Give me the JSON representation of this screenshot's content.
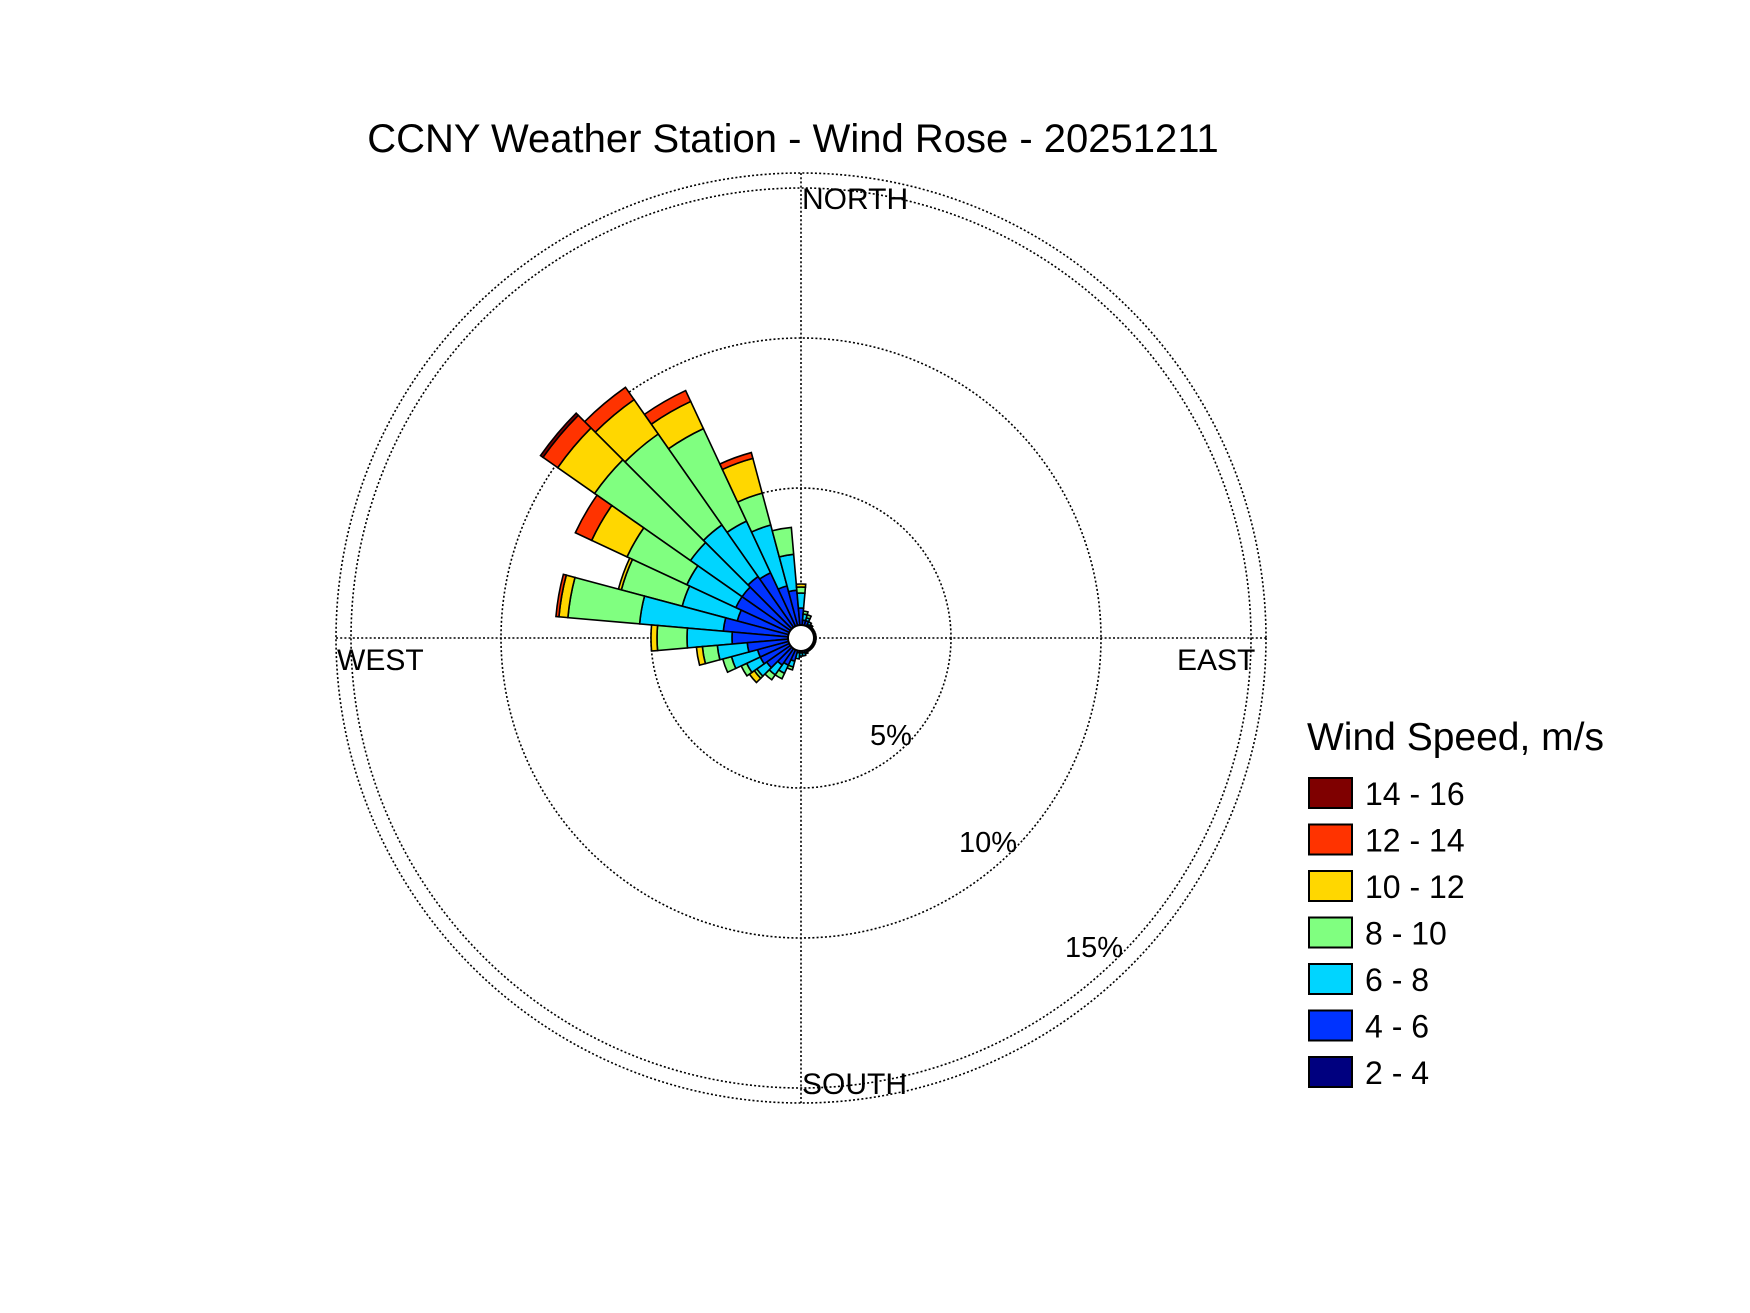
{
  "chart_data": {
    "type": "windrose",
    "title": "CCNY Weather Station - Wind Rose - 20251211",
    "directions": {
      "north": "NORTH",
      "east": "EAST",
      "south": "SOUTH",
      "west": "WEST"
    },
    "rings": [
      {
        "value": 5,
        "label": "5%"
      },
      {
        "value": 10,
        "label": "10%"
      },
      {
        "value": 15,
        "label": "15%"
      }
    ],
    "rmax": 15.5,
    "sector_width_deg": 10,
    "legend": {
      "title": "Wind Speed, m/s",
      "bins": [
        {
          "label": "14 - 16",
          "color": "#7f0000"
        },
        {
          "label": "12 - 14",
          "color": "#ff3300"
        },
        {
          "label": "10 - 12",
          "color": "#ffd700"
        },
        {
          "label": "8 - 10",
          "color": "#80ff80"
        },
        {
          "label": "6 - 8",
          "color": "#00d5ff"
        },
        {
          "label": "4 - 6",
          "color": "#0033ff"
        },
        {
          "label": "2 - 4",
          "color": "#00007f"
        }
      ]
    },
    "bin_order_inner_to_outer": [
      "2 - 4",
      "4 - 6",
      "6 - 8",
      "8 - 10",
      "10 - 12",
      "12 - 14",
      "14 - 16"
    ],
    "sectors": [
      {
        "dir": 330,
        "cumulative": [
          0.4,
          2.4,
          4.3,
          7.7,
          8.7,
          9.1,
          9.1
        ]
      },
      {
        "dir": 320,
        "cumulative": [
          0.4,
          2.5,
          4.6,
          8.3,
          9.7,
          10.2,
          10.2
        ]
      },
      {
        "dir": 310,
        "cumulative": [
          0.4,
          2.4,
          4.5,
          8.4,
          9.9,
          10.5,
          10.6
        ]
      },
      {
        "dir": 300,
        "cumulative": [
          0.4,
          2.4,
          4.2,
          6.4,
          7.7,
          8.3,
          8.3
        ]
      },
      {
        "dir": 290,
        "cumulative": [
          0.4,
          2.2,
          4.1,
          6.2,
          6.3,
          6.3,
          6.3
        ]
      },
      {
        "dir": 280,
        "cumulative": [
          0.4,
          2.6,
          5.4,
          7.8,
          8.1,
          8.2,
          8.2
        ]
      },
      {
        "dir": 270,
        "cumulative": [
          0.4,
          2.3,
          3.8,
          4.8,
          5.0,
          5.0,
          5.0
        ]
      },
      {
        "dir": 340,
        "cumulative": [
          0.4,
          1.8,
          3.9,
          5.0,
          6.2,
          6.4,
          6.4
        ]
      },
      {
        "dir": 350,
        "cumulative": [
          0.4,
          1.6,
          2.8,
          3.7,
          3.7,
          3.7,
          3.7
        ]
      },
      {
        "dir": 0,
        "cumulative": [
          0.4,
          1.0,
          1.5,
          1.7,
          1.8,
          1.8,
          1.8
        ]
      },
      {
        "dir": 10,
        "cumulative": [
          0.4,
          0.6,
          0.8,
          0.9,
          0.9,
          0.9,
          0.9
        ]
      },
      {
        "dir": 20,
        "cumulative": [
          0.4,
          0.6,
          0.7,
          0.8,
          0.8,
          0.8,
          0.8
        ]
      },
      {
        "dir": 30,
        "cumulative": [
          0.4,
          0.5,
          0.6,
          0.6,
          0.6,
          0.6,
          0.6
        ]
      },
      {
        "dir": 40,
        "cumulative": [
          0.4,
          0.5,
          0.55,
          0.55,
          0.55,
          0.55,
          0.55
        ]
      },
      {
        "dir": 50,
        "cumulative": [
          0.4,
          0.45,
          0.5,
          0.5,
          0.5,
          0.5,
          0.5
        ]
      },
      {
        "dir": 60,
        "cumulative": [
          0.4,
          0.45,
          0.5,
          0.5,
          0.5,
          0.5,
          0.5
        ]
      },
      {
        "dir": 70,
        "cumulative": [
          0.4,
          0.45,
          0.5,
          0.5,
          0.5,
          0.5,
          0.5
        ]
      },
      {
        "dir": 80,
        "cumulative": [
          0.4,
          0.45,
          0.5,
          0.5,
          0.5,
          0.5,
          0.5
        ]
      },
      {
        "dir": 90,
        "cumulative": [
          0.4,
          0.45,
          0.5,
          0.5,
          0.5,
          0.5,
          0.5
        ]
      },
      {
        "dir": 100,
        "cumulative": [
          0.4,
          0.45,
          0.5,
          0.5,
          0.5,
          0.5,
          0.5
        ]
      },
      {
        "dir": 110,
        "cumulative": [
          0.4,
          0.45,
          0.5,
          0.5,
          0.5,
          0.5,
          0.5
        ]
      },
      {
        "dir": 120,
        "cumulative": [
          0.4,
          0.45,
          0.5,
          0.5,
          0.5,
          0.5,
          0.5
        ]
      },
      {
        "dir": 130,
        "cumulative": [
          0.4,
          0.45,
          0.5,
          0.5,
          0.5,
          0.5,
          0.5
        ]
      },
      {
        "dir": 140,
        "cumulative": [
          0.4,
          0.45,
          0.5,
          0.5,
          0.5,
          0.5,
          0.5
        ]
      },
      {
        "dir": 150,
        "cumulative": [
          0.4,
          0.45,
          0.5,
          0.5,
          0.5,
          0.5,
          0.5
        ]
      },
      {
        "dir": 160,
        "cumulative": [
          0.4,
          0.5,
          0.55,
          0.55,
          0.55,
          0.55,
          0.55
        ]
      },
      {
        "dir": 170,
        "cumulative": [
          0.4,
          0.5,
          0.6,
          0.6,
          0.6,
          0.6,
          0.6
        ]
      },
      {
        "dir": 180,
        "cumulative": [
          0.4,
          0.5,
          0.6,
          0.6,
          0.6,
          0.6,
          0.6
        ]
      },
      {
        "dir": 190,
        "cumulative": [
          0.4,
          0.5,
          0.7,
          0.7,
          0.7,
          0.7,
          0.7
        ]
      },
      {
        "dir": 200,
        "cumulative": [
          0.4,
          0.8,
          1.0,
          1.1,
          1.1,
          1.1,
          1.1
        ]
      },
      {
        "dir": 210,
        "cumulative": [
          0.4,
          1.0,
          1.3,
          1.5,
          1.5,
          1.5,
          1.5
        ]
      },
      {
        "dir": 220,
        "cumulative": [
          0.4,
          1.1,
          1.5,
          1.7,
          1.7,
          1.7,
          1.7
        ]
      },
      {
        "dir": 230,
        "cumulative": [
          0.4,
          1.4,
          1.8,
          1.9,
          2.1,
          2.1,
          2.1
        ]
      },
      {
        "dir": 240,
        "cumulative": [
          0.4,
          1.5,
          2.0,
          2.2,
          2.2,
          2.2,
          2.2
        ]
      },
      {
        "dir": 250,
        "cumulative": [
          0.4,
          1.5,
          2.4,
          2.7,
          2.7,
          2.7,
          2.7
        ]
      },
      {
        "dir": 260,
        "cumulative": [
          0.4,
          1.8,
          2.8,
          3.3,
          3.5,
          3.5,
          3.5
        ]
      }
    ]
  }
}
